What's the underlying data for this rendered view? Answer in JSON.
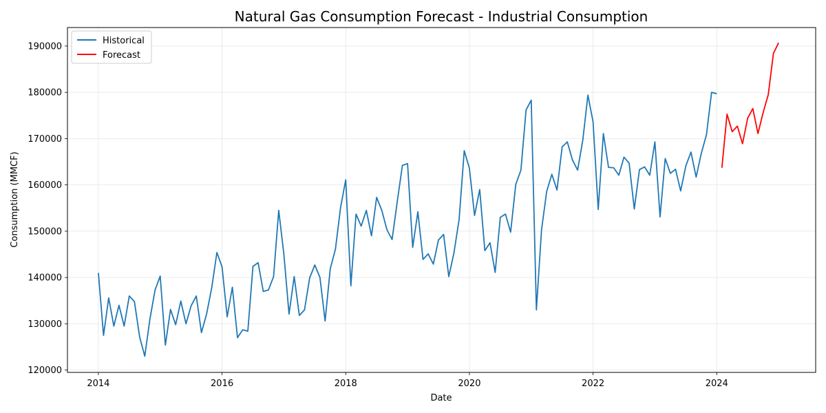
{
  "chart_data": {
    "type": "line",
    "title": "Natural Gas Consumption Forecast - Industrial Consumption",
    "xlabel": "Date",
    "ylabel": "Consumption (MMCF)",
    "xlim": [
      2013.5,
      2025.6
    ],
    "ylim": [
      119500,
      194000
    ],
    "x_ticks": [
      2014,
      2016,
      2018,
      2020,
      2022,
      2024
    ],
    "x_tick_labels": [
      "2014",
      "2016",
      "2018",
      "2020",
      "2022",
      "2024"
    ],
    "y_ticks": [
      120000,
      130000,
      140000,
      150000,
      160000,
      170000,
      180000,
      190000
    ],
    "y_tick_labels": [
      "120000",
      "130000",
      "140000",
      "150000",
      "160000",
      "170000",
      "180000",
      "190000"
    ],
    "grid": true,
    "legend_position": "top-left",
    "series": [
      {
        "name": "Historical",
        "color": "#1f77b4",
        "start_year": 2014,
        "start_month": 1,
        "values": [
          141000,
          127500,
          135600,
          129500,
          134000,
          129500,
          136000,
          134800,
          127200,
          123000,
          131000,
          137300,
          140300,
          125400,
          133100,
          129800,
          134900,
          130000,
          133900,
          136000,
          128100,
          132100,
          137800,
          145400,
          142300,
          131500,
          137900,
          127000,
          128700,
          128400,
          142400,
          143200,
          137000,
          137300,
          140200,
          154500,
          145000,
          132100,
          140200,
          131800,
          133000,
          139900,
          142700,
          140000,
          130600,
          141900,
          146100,
          155100,
          161100,
          138200,
          153700,
          151100,
          154500,
          149000,
          157300,
          154500,
          150300,
          148200,
          156400,
          164200,
          164600,
          146500,
          154200,
          143900,
          145100,
          142900,
          148100,
          149300,
          140200,
          145300,
          152500,
          167400,
          163600,
          153400,
          159000,
          145800,
          147500,
          141100,
          153000,
          153700,
          149800,
          160100,
          163200,
          176200,
          178300,
          133000,
          150300,
          158600,
          162300,
          158900,
          168200,
          169300,
          165400,
          163200,
          169600,
          179400,
          173600,
          154700,
          171100,
          163800,
          163700,
          162100,
          166000,
          164700,
          154800,
          163300,
          163900,
          162100,
          169300,
          153100,
          165700,
          162500,
          163400,
          158700,
          164100,
          167100,
          161700,
          166800,
          170800,
          180000,
          179700
        ]
      },
      {
        "name": "Forecast",
        "color": "#ff0000",
        "start_year": 2024,
        "start_month": 2,
        "values": [
          163700,
          175300,
          171500,
          172700,
          168900,
          174400,
          176500,
          171100,
          175600,
          179500,
          188400,
          190700
        ]
      }
    ]
  }
}
